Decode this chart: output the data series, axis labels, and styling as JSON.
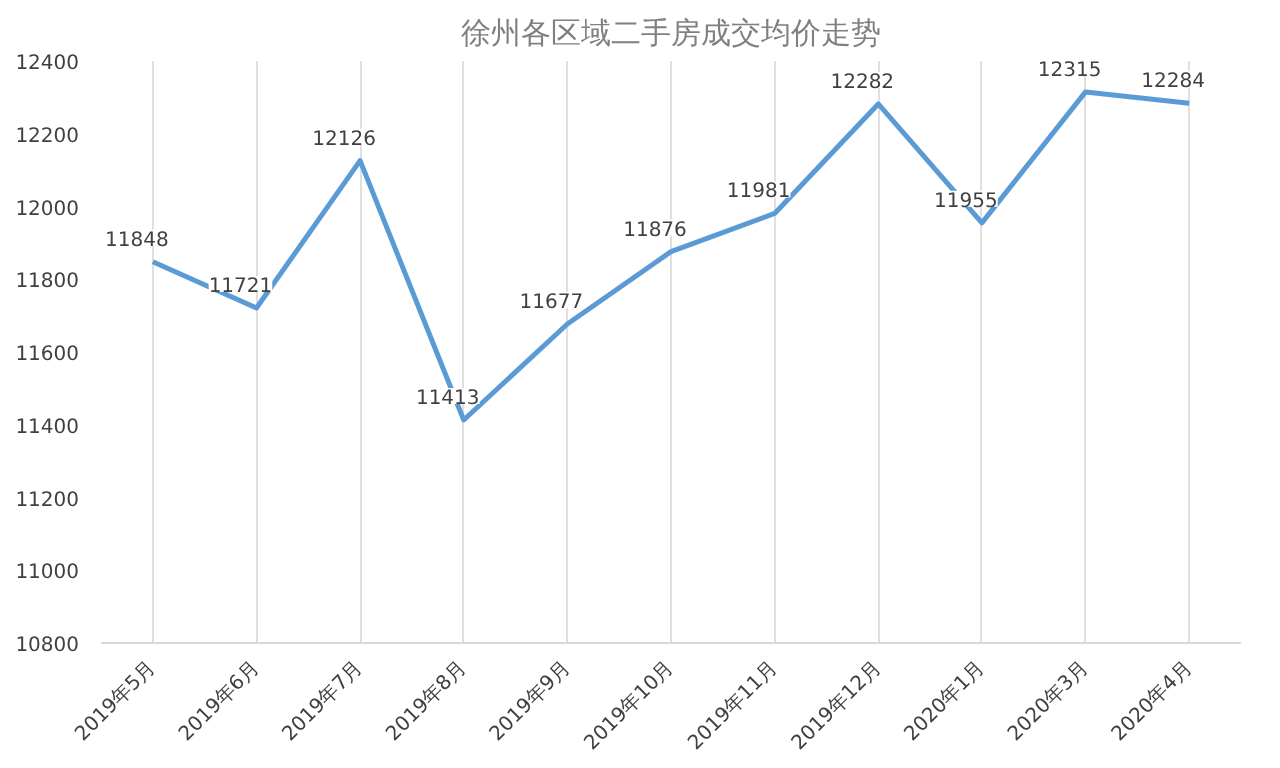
{
  "chart_data": {
    "type": "line",
    "title": "徐州各区域二手房成交均价走势",
    "categories": [
      "2019年5月",
      "2019年6月",
      "2019年7月",
      "2019年8月",
      "2019年9月",
      "2019年10月",
      "2019年11月",
      "2019年12月",
      "2020年1月",
      "2020年3月",
      "2020年4月"
    ],
    "series": [
      {
        "color": "#5b9bd5",
        "values": [
          11848,
          11721,
          12126,
          11413,
          11677,
          11876,
          11981,
          12282,
          11955,
          12315,
          12284
        ]
      }
    ],
    "ylim": [
      10800,
      12400
    ],
    "yticks": [
      10800,
      11000,
      11200,
      11400,
      11600,
      11800,
      12000,
      12200,
      12400
    ],
    "grid": "x",
    "data_labels": true,
    "marker": "none",
    "line_style": "solid"
  }
}
